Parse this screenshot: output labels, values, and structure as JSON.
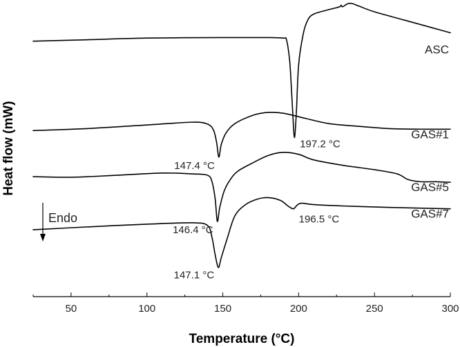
{
  "chart_data": {
    "type": "line",
    "title": "",
    "xlabel": "Temperature (°C)",
    "ylabel": "Heat flow (mW)",
    "xlim": [
      25,
      300
    ],
    "xticks": [
      50,
      100,
      150,
      200,
      250,
      300
    ],
    "y_axis_ticks": false,
    "legend": "none",
    "line_color": "#000000",
    "endo_note": "Endo",
    "series": [
      {
        "name": "ASC",
        "points": [
          [
            25,
            0.865
          ],
          [
            60,
            0.87
          ],
          [
            100,
            0.876
          ],
          [
            150,
            0.878
          ],
          [
            180,
            0.878
          ],
          [
            190,
            0.876
          ],
          [
            192,
            0.87
          ],
          [
            194,
            0.8
          ],
          [
            195,
            0.72
          ],
          [
            196,
            0.62
          ],
          [
            197.2,
            0.52
          ],
          [
            198.5,
            0.61
          ],
          [
            200,
            0.78
          ],
          [
            203,
            0.89
          ],
          [
            206,
            0.94
          ],
          [
            210,
            0.962
          ],
          [
            220,
            0.978
          ],
          [
            227,
            0.988
          ],
          [
            228,
            0.994
          ],
          [
            229,
            0.988
          ],
          [
            232,
            0.998
          ],
          [
            235,
            1.0
          ],
          [
            240,
            0.99
          ],
          [
            250,
            0.97
          ],
          [
            270,
            0.94
          ],
          [
            290,
            0.91
          ],
          [
            300,
            0.895
          ]
        ]
      },
      {
        "name": "GAS#1",
        "points": [
          [
            25,
            0.545
          ],
          [
            60,
            0.552
          ],
          [
            100,
            0.565
          ],
          [
            130,
            0.575
          ],
          [
            140,
            0.568
          ],
          [
            144,
            0.545
          ],
          [
            146,
            0.5
          ],
          [
            147.4,
            0.45
          ],
          [
            149,
            0.495
          ],
          [
            152,
            0.535
          ],
          [
            158,
            0.57
          ],
          [
            170,
            0.6
          ],
          [
            180,
            0.61
          ],
          [
            190,
            0.607
          ],
          [
            205,
            0.588
          ],
          [
            220,
            0.57
          ],
          [
            240,
            0.56
          ],
          [
            260,
            0.552
          ],
          [
            280,
            0.55
          ],
          [
            300,
            0.55
          ]
        ]
      },
      {
        "name": "GAS#5",
        "points": [
          [
            25,
            0.38
          ],
          [
            50,
            0.378
          ],
          [
            80,
            0.385
          ],
          [
            110,
            0.393
          ],
          [
            130,
            0.39
          ],
          [
            140,
            0.385
          ],
          [
            143,
            0.36
          ],
          [
            145,
            0.3
          ],
          [
            146.4,
            0.22
          ],
          [
            148,
            0.27
          ],
          [
            151,
            0.33
          ],
          [
            155,
            0.37
          ],
          [
            160,
            0.4
          ],
          [
            170,
            0.43
          ],
          [
            180,
            0.456
          ],
          [
            190,
            0.467
          ],
          [
            200,
            0.46
          ],
          [
            210,
            0.44
          ],
          [
            230,
            0.42
          ],
          [
            250,
            0.405
          ],
          [
            265,
            0.39
          ],
          [
            272,
            0.37
          ],
          [
            280,
            0.362
          ],
          [
            290,
            0.362
          ],
          [
            300,
            0.36
          ]
        ]
      },
      {
        "name": "GAS#7",
        "points": [
          [
            25,
            0.19
          ],
          [
            60,
            0.2
          ],
          [
            100,
            0.21
          ],
          [
            130,
            0.215
          ],
          [
            140,
            0.205
          ],
          [
            143,
            0.16
          ],
          [
            145,
            0.1
          ],
          [
            147.1,
            0.055
          ],
          [
            149,
            0.09
          ],
          [
            153,
            0.16
          ],
          [
            158,
            0.24
          ],
          [
            165,
            0.28
          ],
          [
            173,
            0.3
          ],
          [
            180,
            0.305
          ],
          [
            188,
            0.295
          ],
          [
            193,
            0.275
          ],
          [
            196.5,
            0.265
          ],
          [
            199,
            0.278
          ],
          [
            202,
            0.285
          ],
          [
            210,
            0.28
          ],
          [
            230,
            0.275
          ],
          [
            260,
            0.27
          ],
          [
            300,
            0.265
          ]
        ]
      }
    ],
    "peak_labels": [
      {
        "text": "197.2 °C",
        "series": "ASC",
        "x": 197.2
      },
      {
        "text": "147.4 °C",
        "series": "GAS#1",
        "x": 147.4
      },
      {
        "text": "146.4 °C",
        "series": "GAS#5",
        "x": 146.4
      },
      {
        "text": "147.1 °C",
        "series": "GAS#7",
        "x": 147.1
      },
      {
        "text": "196.5 °C",
        "series": "GAS#7",
        "x": 196.5
      }
    ]
  }
}
